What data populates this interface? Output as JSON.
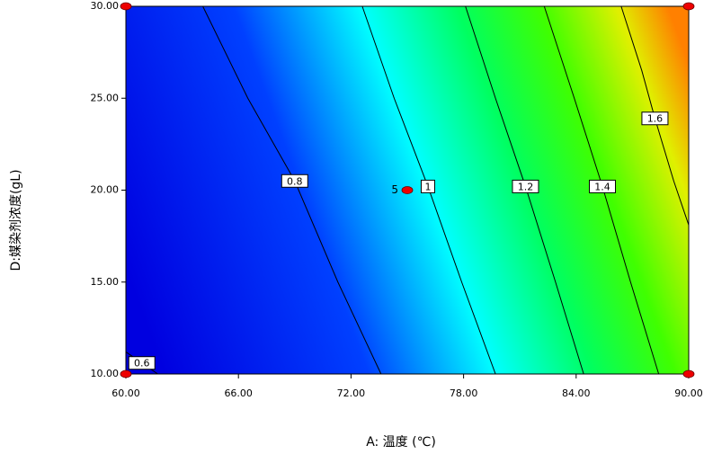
{
  "chart_data": {
    "type": "contour",
    "x_label": "A: 温度 (℃)",
    "y_label": "D:媒染剂浓度(gL)",
    "xlim": [
      60,
      90
    ],
    "ylim": [
      10,
      30
    ],
    "xticks": [
      {
        "value": 60,
        "label": "60.00"
      },
      {
        "value": 66,
        "label": "66.00"
      },
      {
        "value": 72,
        "label": "72.00"
      },
      {
        "value": 78,
        "label": "78.00"
      },
      {
        "value": 84,
        "label": "84.00"
      },
      {
        "value": 90,
        "label": "90.00"
      }
    ],
    "yticks": [
      {
        "value": 10,
        "label": "10.00"
      },
      {
        "value": 15,
        "label": "15.00"
      },
      {
        "value": 20,
        "label": "20.00"
      },
      {
        "value": 25,
        "label": "25.00"
      },
      {
        "value": 30,
        "label": "30.00"
      }
    ],
    "contours": [
      {
        "level": 0.6,
        "x": [
          60,
          61.7
        ],
        "y": [
          11.2,
          10
        ]
      },
      {
        "level": 0.8,
        "x": [
          64.1,
          66.5,
          69.0,
          71.3,
          73.6
        ],
        "y": [
          30,
          25,
          20.5,
          15,
          10
        ]
      },
      {
        "level": 1,
        "x": [
          72.6,
          74.3,
          76.1,
          77.9,
          79.7
        ],
        "y": [
          30,
          25,
          20.2,
          15,
          10
        ]
      },
      {
        "level": 1.2,
        "x": [
          78.1,
          79.7,
          81.3,
          82.9,
          84.4
        ],
        "y": [
          30,
          25,
          20.2,
          15,
          10
        ]
      },
      {
        "level": 1.4,
        "x": [
          82.3,
          83.9,
          85.4,
          86.9,
          88.4
        ],
        "y": [
          30,
          25,
          20.2,
          15,
          10
        ]
      },
      {
        "level": 1.6,
        "x": [
          86.4,
          87.5,
          88.2,
          89.2,
          90
        ],
        "y": [
          30,
          26.5,
          23.9,
          20.5,
          18.1
        ]
      }
    ],
    "design_points": {
      "x": [
        60,
        60,
        90,
        90,
        75
      ],
      "y": [
        10,
        30,
        10,
        30,
        20
      ]
    },
    "center_label": 5
  }
}
